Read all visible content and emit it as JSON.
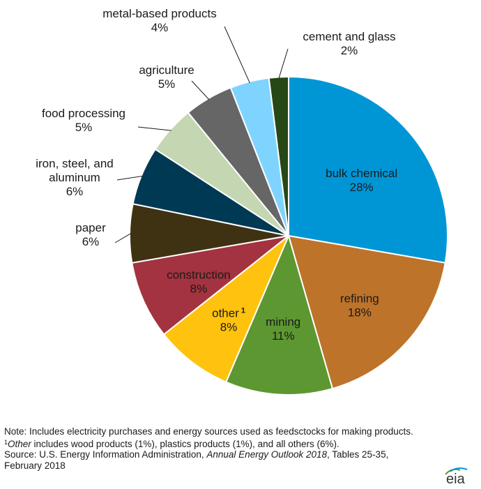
{
  "chart_data": {
    "type": "pie",
    "slices": [
      {
        "label": "bulk chemical",
        "value": 28,
        "value_label": "28%",
        "color": "#0096d6"
      },
      {
        "label": "refining",
        "value": 18,
        "value_label": "18%",
        "color": "#bd732a"
      },
      {
        "label": "mining",
        "value": 11,
        "value_label": "11%",
        "color": "#5d9732"
      },
      {
        "label": "other",
        "value": 8,
        "value_label": "8%",
        "color": "#ffc20e",
        "footnote_mark": "1"
      },
      {
        "label": "construction",
        "value": 8,
        "value_label": "8%",
        "color": "#a33340"
      },
      {
        "label": "paper",
        "value": 6,
        "value_label": "6%",
        "color": "#3f3213"
      },
      {
        "label": "iron, steel, and aluminum",
        "value": 6,
        "value_label": "6%",
        "color": "#003953"
      },
      {
        "label": "food processing",
        "value": 5,
        "value_label": "5%",
        "color": "#c4d7b2"
      },
      {
        "label": "agriculture",
        "value": 5,
        "value_label": "5%",
        "color": "#666666"
      },
      {
        "label": "metal-based products",
        "value": 4,
        "value_label": "4%",
        "color": "#7fd4ff"
      },
      {
        "label": "cement and glass",
        "value": 2,
        "value_label": "2%",
        "color": "#264716"
      }
    ]
  },
  "notes": {
    "note_prefix": "Note: Includes electricity purchases and energy sources used as feedsctocks for making products. ",
    "footnote_mark": "1",
    "other_word": "Other",
    "note_rest": " includes wood products (1%), plastics products (1%), and all others (6%).",
    "source_prefix": "Source: U.S. Energy Information Administration, ",
    "source_title": "Annual Energy Outlook 2018",
    "source_rest": ", Tables 25-35, February 2018"
  },
  "logo": {
    "text": "eia"
  }
}
